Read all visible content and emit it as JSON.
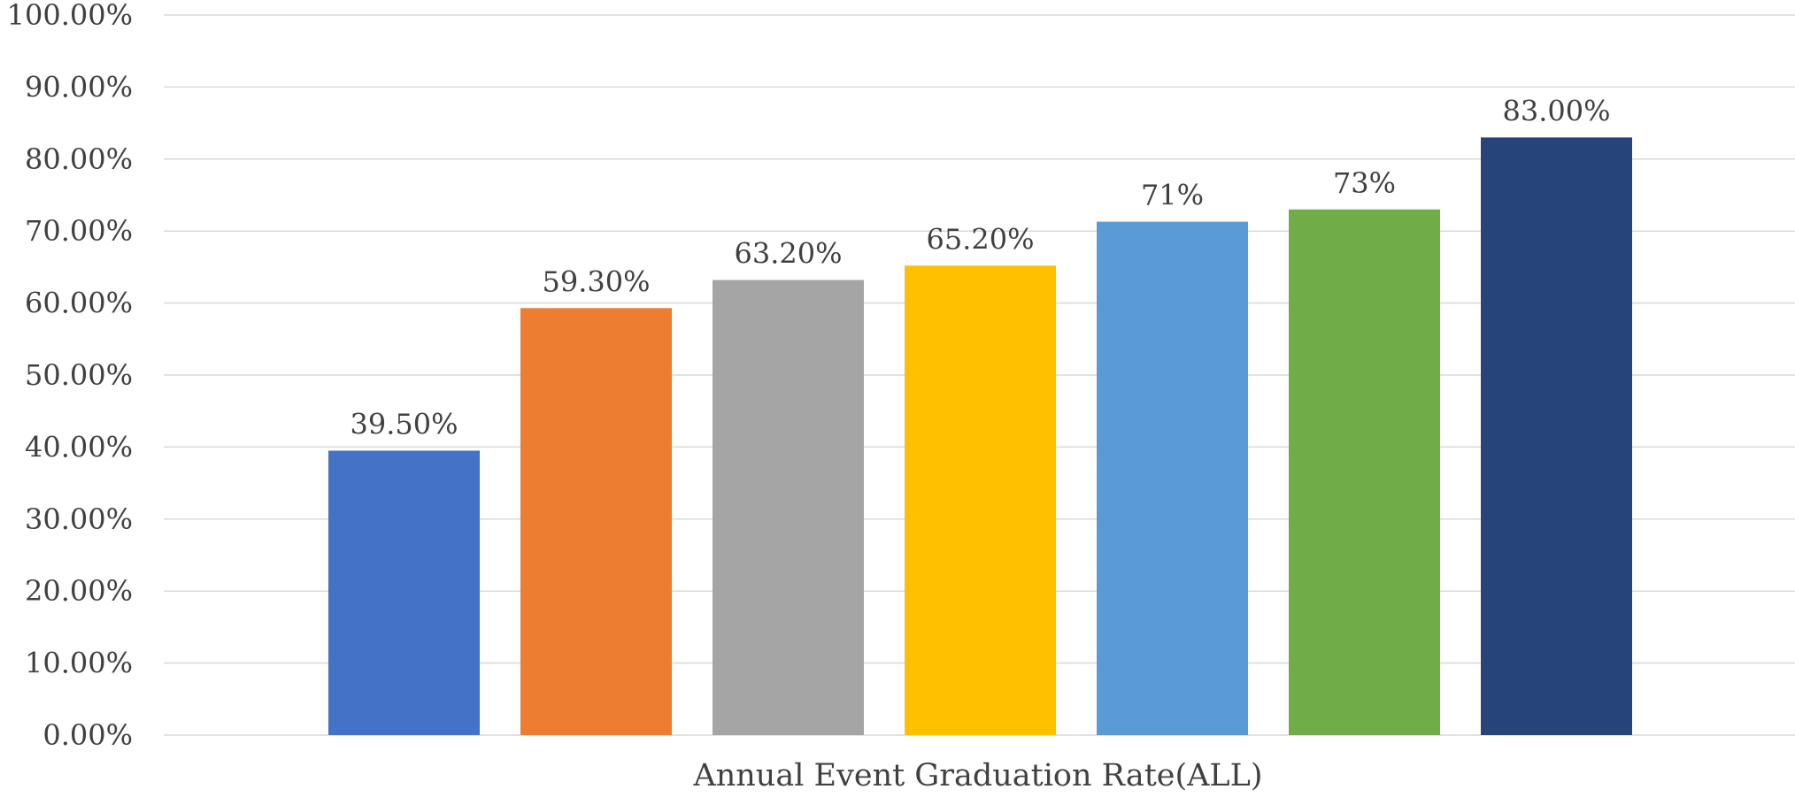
{
  "chart_data": {
    "type": "bar",
    "title": "",
    "xlabel": "Annual Event Graduation Rate(ALL)",
    "ylabel": "",
    "ylim": [
      0,
      100
    ],
    "y_ticks": [
      0,
      10,
      20,
      30,
      40,
      50,
      60,
      70,
      80,
      90,
      100
    ],
    "y_tick_labels": [
      "0.00%",
      "10.00%",
      "20.00%",
      "30.00%",
      "40.00%",
      "50.00%",
      "60.00%",
      "70.00%",
      "80.00%",
      "90.00%",
      "100.00%"
    ],
    "grid": true,
    "legend": "none",
    "bars": [
      {
        "value": 39.5,
        "label": "39.50%",
        "color": "#4472C4"
      },
      {
        "value": 59.3,
        "label": "59.30%",
        "color": "#ED7D31"
      },
      {
        "value": 63.2,
        "label": "63.20%",
        "color": "#A5A5A5"
      },
      {
        "value": 65.2,
        "label": "65.20%",
        "color": "#FFC000"
      },
      {
        "value": 71.3,
        "label": "71%",
        "color": "#5B9BD5"
      },
      {
        "value": 73.0,
        "label": "73%",
        "color": "#70AD47"
      },
      {
        "value": 83.0,
        "label": "83.00%",
        "color": "#264478"
      }
    ],
    "colors": {
      "grid": "#D9D9D9",
      "text": "#404040"
    }
  }
}
